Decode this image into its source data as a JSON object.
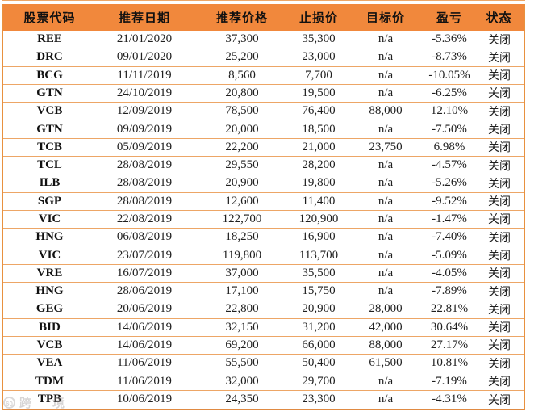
{
  "table": {
    "columns": [
      {
        "key": "code",
        "label": "股票代码"
      },
      {
        "key": "date",
        "label": "推荐日期"
      },
      {
        "key": "price",
        "label": "推荐价格"
      },
      {
        "key": "stop_loss",
        "label": "止损价"
      },
      {
        "key": "target",
        "label": "目标价"
      },
      {
        "key": "pnl",
        "label": "盈亏"
      },
      {
        "key": "status",
        "label": "状态"
      }
    ],
    "rows": [
      [
        "REE",
        "21/01/2020",
        "37,300",
        "35,300",
        "n/a",
        "-5.36%",
        "关闭"
      ],
      [
        "DRC",
        "09/01/2020",
        "25,200",
        "23,000",
        "n/a",
        "-8.73%",
        "关闭"
      ],
      [
        "BCG",
        "11/11/2019",
        "8,560",
        "7,700",
        "n/a",
        "-10.05%",
        "关闭"
      ],
      [
        "GTN",
        "24/10/2019",
        "20,800",
        "19,500",
        "n/a",
        "-6.25%",
        "关闭"
      ],
      [
        "VCB",
        "12/09/2019",
        "78,500",
        "76,400",
        "88,000",
        "12.10%",
        "关闭"
      ],
      [
        "GTN",
        "09/09/2019",
        "20,000",
        "18,500",
        "n/a",
        "-7.50%",
        "关闭"
      ],
      [
        "TCB",
        "05/09/2019",
        "22,200",
        "21,000",
        "23,750",
        "6.98%",
        "关闭"
      ],
      [
        "TCL",
        "28/08/2019",
        "29,550",
        "28,200",
        "n/a",
        "-4.57%",
        "关闭"
      ],
      [
        "ILB",
        "28/08/2019",
        "20,900",
        "19,800",
        "n/a",
        "-5.26%",
        "关闭"
      ],
      [
        "SGP",
        "28/08/2019",
        "12,600",
        "11,400",
        "n/a",
        "-9.52%",
        "关闭"
      ],
      [
        "VIC",
        "22/08/2019",
        "122,700",
        "120,900",
        "n/a",
        "-1.47%",
        "关闭"
      ],
      [
        "HNG",
        "06/08/2019",
        "18,250",
        "16,900",
        "n/a",
        "-7.40%",
        "关闭"
      ],
      [
        "VIC",
        "23/07/2019",
        "119,800",
        "113,700",
        "n/a",
        "-5.09%",
        "关闭"
      ],
      [
        "VRE",
        "16/07/2019",
        "37,000",
        "35,500",
        "n/a",
        "-4.05%",
        "关闭"
      ],
      [
        "HNG",
        "28/06/2019",
        "17,100",
        "15,750",
        "n/a",
        "-7.89%",
        "关闭"
      ],
      [
        "GEG",
        "20/06/2019",
        "22,800",
        "20,900",
        "28,000",
        "22.81%",
        "关闭"
      ],
      [
        "BID",
        "14/06/2019",
        "32,150",
        "31,200",
        "42,000",
        "30.64%",
        "关闭"
      ],
      [
        "VCB",
        "14/06/2019",
        "69,200",
        "66,000",
        "88,000",
        "27.17%",
        "关闭"
      ],
      [
        "VEA",
        "11/06/2019",
        "55,500",
        "50,400",
        "61,500",
        "10.81%",
        "关闭"
      ],
      [
        "TDM",
        "11/06/2019",
        "32,000",
        "29,700",
        "n/a",
        "-7.19%",
        "关闭"
      ],
      [
        "TPB",
        "10/06/2019",
        "24,350",
        "23,300",
        "n/a",
        "-4.31%",
        "关闭"
      ]
    ]
  },
  "colors": {
    "header_bg": "#f1883c",
    "row_border": "#eda666",
    "outer_border": "#e8913f",
    "text": "#1f1f1f"
  },
  "watermark": {
    "badge": "60",
    "text": "跨境"
  }
}
